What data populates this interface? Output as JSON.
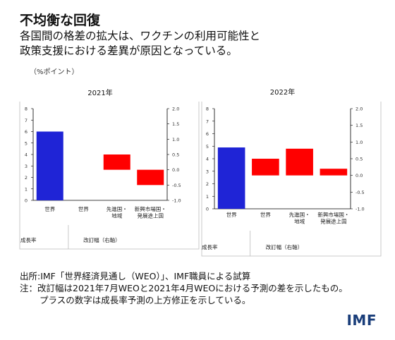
{
  "header": {
    "title": "不均衡な回復",
    "subtitle_line1": "各国間の格差の拡大は、ワクチンの利用可能性と",
    "subtitle_line2": "政策支援における差異が原因となっている。",
    "unit": "（%ポイント）"
  },
  "colors": {
    "growth": "#1f24d6",
    "revision": "#ff0000"
  },
  "chart_data": [
    {
      "type": "bar",
      "title": "2021年",
      "categories": [
        "世界",
        "世界",
        "先進国・\n地域",
        "新興市場国・\n発展途上国"
      ],
      "growth_value": 6.0,
      "revisions": [
        0,
        0.5,
        -0.5
      ],
      "ylim_left": [
        0,
        8
      ],
      "yticks_left": [
        "0",
        "1",
        "2",
        "3",
        "4",
        "5",
        "6",
        "7",
        "8"
      ],
      "ylim_right": [
        -1.0,
        2.0
      ],
      "yticks_right": [
        "2.0",
        "1.5",
        "1.0",
        "0.5",
        "0.0",
        "-0.5",
        "-1.0"
      ],
      "group_label_left": "成長率",
      "group_label_right": "改訂幅（右軸）"
    },
    {
      "type": "bar",
      "title": "2022年",
      "categories": [
        "世界",
        "世界",
        "先進国・\n地域",
        "新興市場国・\n発展途上国"
      ],
      "growth_value": 4.9,
      "revisions": [
        0.5,
        0.8,
        0.2
      ],
      "ylim_left": [
        0,
        8
      ],
      "yticks_left": [
        "0",
        "1",
        "2",
        "3",
        "4",
        "5",
        "6",
        "7",
        "8"
      ],
      "ylim_right": [
        -1.0,
        2.0
      ],
      "yticks_right": [
        "2.0",
        "1.5",
        "1.0",
        "0.5",
        "0.0",
        "-0.5",
        "-1.0"
      ],
      "group_label_left": "成長率",
      "group_label_right": "改訂幅（右軸）"
    }
  ],
  "footer": {
    "source": "出所:IMF「世界経済見通し（WEO）」、IMF職員による試算",
    "note_line1": "注：改訂幅は2021年7月WEOと2021年4月WEOにおける予測の差を示したもの。",
    "note_line2": "プラスの数字は成長率予測の上方修正を示している。",
    "logo": "IMF"
  }
}
